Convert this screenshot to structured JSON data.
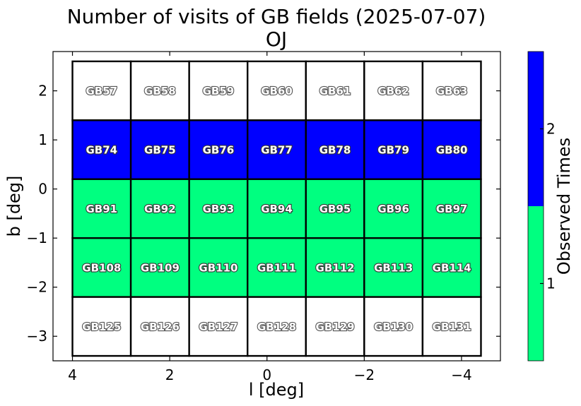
{
  "chart_data": {
    "type": "heatmap",
    "title": "Number of visits of GB fields (2025-07-07)",
    "subtitle": "OJ",
    "xlabel": "l [deg]",
    "ylabel": "b [deg]",
    "xlim": [
      4.4,
      -4.8
    ],
    "ylim": [
      -3.5,
      2.8
    ],
    "xticks": [
      4,
      2,
      0,
      -2,
      -4
    ],
    "xtick_labels": [
      "4",
      "2",
      "0",
      "−2",
      "−4"
    ],
    "yticks": [
      2,
      1,
      0,
      -1,
      -2,
      -3
    ],
    "ytick_labels": [
      "2",
      "1",
      "0",
      "−1",
      "−2",
      "−3"
    ],
    "field_grid": {
      "l_start": 4.0,
      "l_step": -1.2,
      "b_top": 2.6,
      "b_step": -1.2
    },
    "rows": [
      {
        "b_center": 2.0,
        "fields": [
          "GB57",
          "GB58",
          "GB59",
          "GB60",
          "GB61",
          "GB62",
          "GB63"
        ],
        "visits": [
          0,
          0,
          0,
          0,
          0,
          0,
          0
        ]
      },
      {
        "b_center": 0.8,
        "fields": [
          "GB74",
          "GB75",
          "GB76",
          "GB77",
          "GB78",
          "GB79",
          "GB80"
        ],
        "visits": [
          2,
          2,
          2,
          2,
          2,
          2,
          2
        ]
      },
      {
        "b_center": -0.4,
        "fields": [
          "GB91",
          "GB92",
          "GB93",
          "GB94",
          "GB95",
          "GB96",
          "GB97"
        ],
        "visits": [
          1,
          1,
          1,
          1,
          1,
          1,
          1
        ]
      },
      {
        "b_center": -1.6,
        "fields": [
          "GB108",
          "GB109",
          "GB110",
          "GB111",
          "GB112",
          "GB113",
          "GB114"
        ],
        "visits": [
          1,
          1,
          1,
          1,
          1,
          1,
          1
        ]
      },
      {
        "b_center": -2.8,
        "fields": [
          "GB125",
          "GB126",
          "GB127",
          "GB128",
          "GB129",
          "GB130",
          "GB131"
        ],
        "visits": [
          0,
          0,
          0,
          0,
          0,
          0,
          0
        ]
      }
    ],
    "colorbar": {
      "label": "Observed Times",
      "range": [
        0.5,
        2.5
      ],
      "ticks": [
        1,
        2
      ],
      "tick_labels": [
        "1",
        "2"
      ],
      "bins": [
        {
          "value": 1,
          "color": "#00ff80"
        },
        {
          "value": 2,
          "color": "#0000ff"
        }
      ]
    },
    "unobserved_color": "#ffffff",
    "grid": false
  }
}
